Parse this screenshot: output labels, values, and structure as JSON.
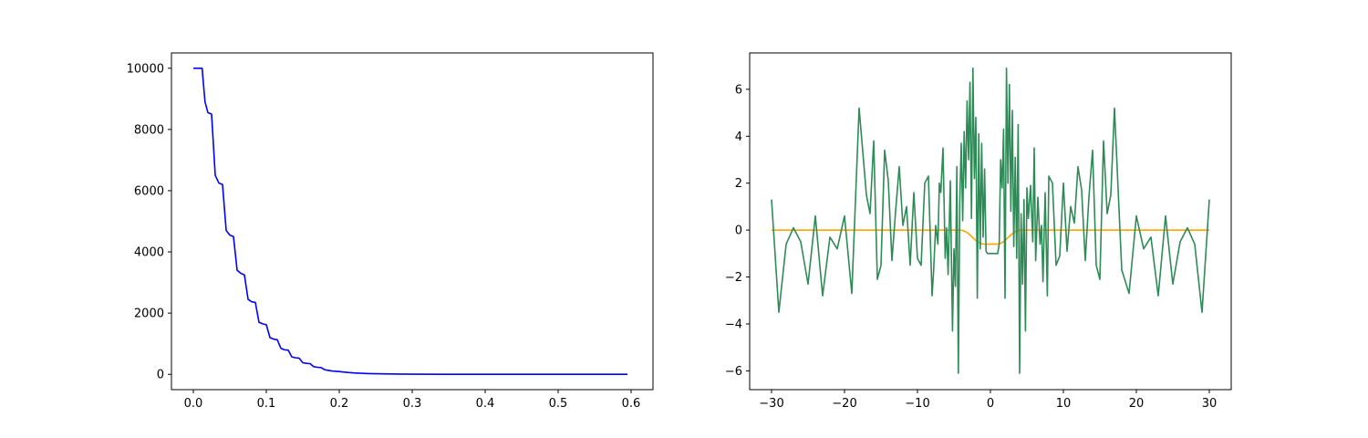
{
  "chart_data": [
    {
      "type": "line",
      "title": "",
      "xlabel": "",
      "ylabel": "",
      "xlim": [
        -0.03,
        0.63
      ],
      "ylim": [
        -500,
        10500
      ],
      "xticks": [
        0.0,
        0.1,
        0.2,
        0.3,
        0.4,
        0.5,
        0.6
      ],
      "xtick_labels": [
        "0.0",
        "0.1",
        "0.2",
        "0.3",
        "0.4",
        "0.5",
        "0.6"
      ],
      "yticks": [
        0,
        2000,
        4000,
        6000,
        8000,
        10000
      ],
      "ytick_labels": [
        "0",
        "2000",
        "4000",
        "6000",
        "8000",
        "10000"
      ],
      "grid": false,
      "series": [
        {
          "color": "#0000ff",
          "x": [
            0.0,
            0.012,
            0.016,
            0.02,
            0.025,
            0.03,
            0.035,
            0.04,
            0.045,
            0.05,
            0.055,
            0.06,
            0.065,
            0.07,
            0.075,
            0.08,
            0.085,
            0.09,
            0.095,
            0.1,
            0.105,
            0.11,
            0.115,
            0.12,
            0.125,
            0.13,
            0.135,
            0.14,
            0.145,
            0.15,
            0.155,
            0.16,
            0.165,
            0.17,
            0.175,
            0.18,
            0.19,
            0.2,
            0.21,
            0.22,
            0.24,
            0.26,
            0.28,
            0.3,
            0.35,
            0.4,
            0.45,
            0.5,
            0.55,
            0.595
          ],
          "y": [
            10000,
            10000,
            8900,
            8550,
            8500,
            6500,
            6250,
            6200,
            4700,
            4550,
            4500,
            3400,
            3300,
            3250,
            2450,
            2370,
            2350,
            1700,
            1650,
            1620,
            1200,
            1150,
            1130,
            850,
            800,
            790,
            570,
            540,
            530,
            380,
            360,
            350,
            250,
            230,
            220,
            150,
            110,
            90,
            65,
            45,
            25,
            15,
            8,
            5,
            2,
            1,
            0,
            0,
            0,
            0
          ]
        }
      ]
    },
    {
      "type": "line",
      "title": "",
      "xlabel": "",
      "ylabel": "",
      "xlim": [
        -33,
        33
      ],
      "ylim": [
        -6.8,
        7.55
      ],
      "xticks": [
        -30,
        -20,
        -10,
        0,
        10,
        20,
        30
      ],
      "xtick_labels": [
        "−30",
        "−20",
        "−10",
        "0",
        "10",
        "20",
        "30"
      ],
      "yticks": [
        -6,
        -4,
        -2,
        0,
        2,
        4,
        6
      ],
      "ytick_labels": [
        "−6",
        "−4",
        "−2",
        "0",
        "2",
        "4",
        "6"
      ],
      "grid": false,
      "series": [
        {
          "color": "#ffa500",
          "x": [
            -30,
            -5,
            -4.5,
            -4,
            -3.5,
            -3,
            -2.5,
            -2,
            -1.5,
            -1,
            0,
            1,
            1.5,
            2,
            2.5,
            3,
            3.5,
            4,
            4.5,
            5,
            30
          ],
          "y": [
            0,
            0,
            0,
            0,
            -0.05,
            -0.15,
            -0.3,
            -0.45,
            -0.55,
            -0.6,
            -0.6,
            -0.6,
            -0.55,
            -0.45,
            -0.3,
            -0.15,
            -0.05,
            0,
            0,
            0,
            0
          ]
        },
        {
          "color": "#2e8b57",
          "x": [
            -30,
            -29,
            -28,
            -27,
            -26,
            -25,
            -24,
            -23,
            -22,
            -21,
            -20,
            -19,
            -18,
            -17,
            -16.5,
            -16,
            -15.5,
            -15,
            -14.5,
            -14,
            -13.5,
            -13,
            -12.5,
            -12,
            -11.5,
            -11,
            -10.5,
            -10,
            -9.5,
            -9,
            -8.5,
            -8,
            -7.8,
            -7.5,
            -7.2,
            -7,
            -6.8,
            -6.5,
            -6.2,
            -6,
            -5.8,
            -5.5,
            -5.2,
            -5,
            -4.8,
            -4.6,
            -4.4,
            -4.2,
            -4,
            -3.8,
            -3.6,
            -3.4,
            -3.2,
            -3,
            -2.8,
            -2.6,
            -2.4,
            -2.2,
            -2,
            -1.8,
            -1.6,
            -1.4,
            -1.2,
            -1,
            -0.8,
            -0.6,
            -0.4,
            0,
            0.5,
            1,
            1.2,
            1.4,
            1.6,
            1.8,
            2,
            2.2,
            2.4,
            2.6,
            2.8,
            3,
            3.2,
            3.4,
            3.6,
            3.8,
            4,
            4.2,
            4.4,
            4.6,
            4.8,
            5,
            5.2,
            5.5,
            5.8,
            6,
            6.2,
            6.5,
            6.8,
            7,
            7.2,
            7.5,
            7.8,
            8,
            8.5,
            9,
            9.5,
            10,
            10.5,
            11,
            11.5,
            12,
            12.5,
            13,
            13.5,
            14,
            14.5,
            15,
            15.5,
            16,
            16.5,
            17,
            18,
            19,
            20,
            21,
            22,
            23,
            24,
            25,
            26,
            27,
            28,
            29,
            30
          ],
          "y": [
            1.3,
            -3.5,
            -0.6,
            0.1,
            -0.5,
            -2.3,
            0.6,
            -2.8,
            -0.3,
            -0.8,
            0.6,
            -2.7,
            5.2,
            1.5,
            0.7,
            3.8,
            -2.1,
            -1.5,
            3.4,
            2.1,
            -1.3,
            0.8,
            2.7,
            0.2,
            1.0,
            -1.5,
            1.6,
            -1.2,
            -1.5,
            2.0,
            2.3,
            -2.8,
            -1.8,
            0.2,
            -0.6,
            2.0,
            1.6,
            3.5,
            -1.2,
            0.1,
            -1.9,
            2.1,
            -4.3,
            -0.8,
            -2.4,
            2.7,
            -6.1,
            1.2,
            3.7,
            0.4,
            4.2,
            1.8,
            5.5,
            3.0,
            6.3,
            0.5,
            6.9,
            2.2,
            4.8,
            -2.9,
            4.1,
            -0.8,
            3.7,
            -0.3,
            2.6,
            -0.9,
            -1.0,
            -1.0,
            -1.0,
            -1.0,
            -0.6,
            3.0,
            1.8,
            4.3,
            -2.9,
            6.9,
            2.0,
            6.2,
            0.8,
            5.1,
            -0.7,
            3.1,
            -1.2,
            4.5,
            -6.1,
            0.7,
            -2.3,
            1.3,
            -4.3,
            1.8,
            0.5,
            1.9,
            -0.5,
            3.5,
            -1.3,
            1.4,
            -0.6,
            0.2,
            -2.2,
            1.6,
            -2.8,
            2.3,
            2.0,
            -1.5,
            -1.1,
            2.0,
            -0.9,
            1.0,
            0.3,
            2.7,
            1.7,
            -1.3,
            1.4,
            3.4,
            -1.5,
            -2.1,
            3.8,
            0.7,
            1.5,
            5.2,
            -1.7,
            -2.7,
            0.6,
            -0.8,
            -0.3,
            -2.8,
            0.6,
            -2.3,
            -0.5,
            0.1,
            -0.6,
            -3.5,
            1.3
          ]
        }
      ]
    }
  ]
}
